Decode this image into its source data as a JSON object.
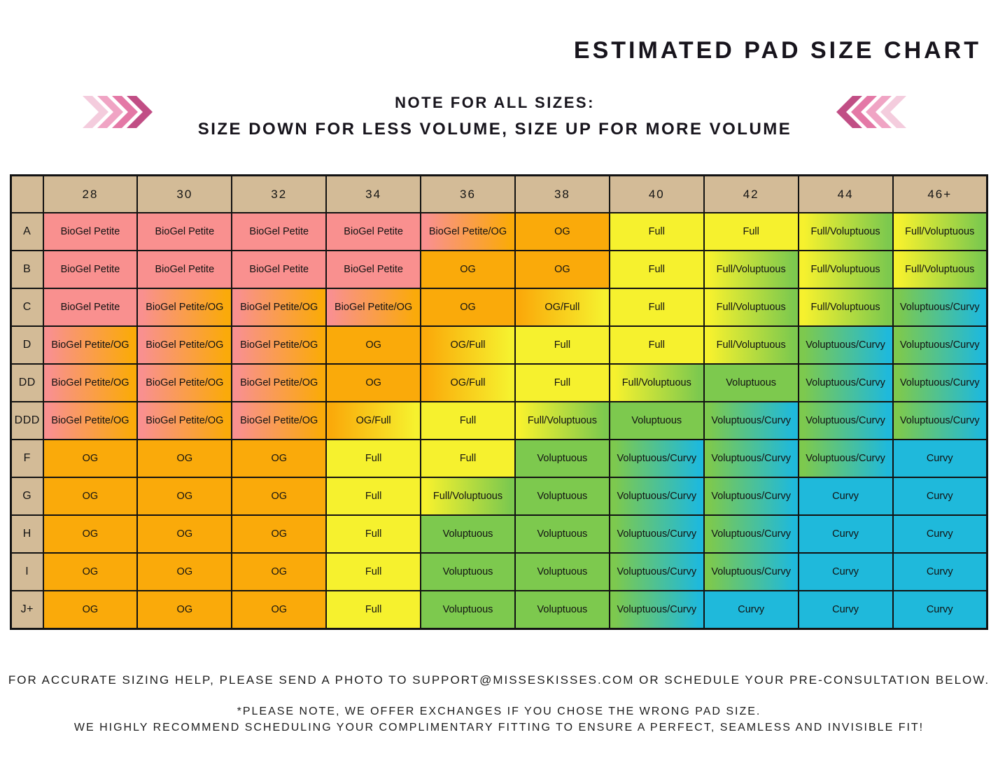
{
  "title": "ESTIMATED PAD SIZE CHART",
  "note": {
    "line1": "NOTE FOR ALL SIZES:",
    "line2": "SIZE DOWN FOR LESS VOLUME, SIZE UP FOR MORE VOLUME"
  },
  "arrows": {
    "colors_light_to_dark": [
      "#F4CCDD",
      "#F0A4C4",
      "#E478A6",
      "#C14E85"
    ]
  },
  "chart_data": {
    "type": "table",
    "title": "ESTIMATED PAD SIZE CHART",
    "columns": [
      "28",
      "30",
      "32",
      "34",
      "36",
      "38",
      "40",
      "42",
      "44",
      "46+"
    ],
    "rows": [
      {
        "label": "A",
        "cells": [
          "BioGel Petite",
          "BioGel Petite",
          "BioGel Petite",
          "BioGel Petite",
          "BioGel Petite/OG",
          "OG",
          "Full",
          "Full",
          "Full/Voluptuous",
          "Full/Voluptuous"
        ]
      },
      {
        "label": "B",
        "cells": [
          "BioGel Petite",
          "BioGel Petite",
          "BioGel Petite",
          "BioGel Petite",
          "OG",
          "OG",
          "Full",
          "Full/Voluptuous",
          "Full/Voluptuous",
          "Full/Voluptuous"
        ]
      },
      {
        "label": "C",
        "cells": [
          "BioGel Petite",
          "BioGel Petite/OG",
          "BioGel Petite/OG",
          "BioGel Petite/OG",
          "OG",
          "OG/Full",
          "Full",
          "Full/Voluptuous",
          "Full/Voluptuous",
          "Voluptuous/Curvy"
        ]
      },
      {
        "label": "D",
        "cells": [
          "BioGel Petite/OG",
          "BioGel Petite/OG",
          "BioGel Petite/OG",
          "OG",
          "OG/Full",
          "Full",
          "Full",
          "Full/Voluptuous",
          "Voluptuous/Curvy",
          "Voluptuous/Curvy"
        ]
      },
      {
        "label": "DD",
        "cells": [
          "BioGel Petite/OG",
          "BioGel Petite/OG",
          "BioGel Petite/OG",
          "OG",
          "OG/Full",
          "Full",
          "Full/Voluptuous",
          "Voluptuous",
          "Voluptuous/Curvy",
          "Voluptuous/Curvy"
        ]
      },
      {
        "label": "DDD",
        "cells": [
          "BioGel Petite/OG",
          "BioGel Petite/OG",
          "BioGel Petite/OG",
          "OG/Full",
          "Full",
          "Full/Voluptuous",
          "Voluptuous",
          "Voluptuous/Curvy",
          "Voluptuous/Curvy",
          "Voluptuous/Curvy"
        ]
      },
      {
        "label": "F",
        "cells": [
          "OG",
          "OG",
          "OG",
          "Full",
          "Full",
          "Voluptuous",
          "Voluptuous/Curvy",
          "Voluptuous/Curvy",
          "Voluptuous/Curvy",
          "Curvy"
        ]
      },
      {
        "label": "G",
        "cells": [
          "OG",
          "OG",
          "OG",
          "Full",
          "Full/Voluptuous",
          "Voluptuous",
          "Voluptuous/Curvy",
          "Voluptuous/Curvy",
          "Curvy",
          "Curvy"
        ]
      },
      {
        "label": "H",
        "cells": [
          "OG",
          "OG",
          "OG",
          "Full",
          "Voluptuous",
          "Voluptuous",
          "Voluptuous/Curvy",
          "Voluptuous/Curvy",
          "Curvy",
          "Curvy"
        ]
      },
      {
        "label": "I",
        "cells": [
          "OG",
          "OG",
          "OG",
          "Full",
          "Voluptuous",
          "Voluptuous",
          "Voluptuous/Curvy",
          "Voluptuous/Curvy",
          "Curvy",
          "Curvy"
        ]
      },
      {
        "label": "J+",
        "cells": [
          "OG",
          "OG",
          "OG",
          "Full",
          "Voluptuous",
          "Voluptuous",
          "Voluptuous/Curvy",
          "Curvy",
          "Curvy",
          "Curvy"
        ]
      }
    ],
    "colors": {
      "BioGel Petite": "#F9908F",
      "OG": "#FAAA0A",
      "Full": "#F6F12E",
      "Voluptuous": "#7DC94E",
      "Curvy": "#1FB9DB"
    },
    "header_bg": "#D3BB97"
  },
  "footer": {
    "line1": "FOR ACCURATE SIZING HELP, PLEASE SEND A PHOTO TO SUPPORT@MISSESKISSES.COM OR SCHEDULE YOUR PRE-CONSULTATION BELOW.",
    "line2": "*PLEASE NOTE, WE OFFER EXCHANGES IF YOU CHOSE THE WRONG PAD SIZE.",
    "line3": "WE HIGHLY RECOMMEND SCHEDULING YOUR COMPLIMENTARY FITTING TO ENSURE A PERFECT, SEAMLESS AND INVISIBLE FIT!"
  }
}
